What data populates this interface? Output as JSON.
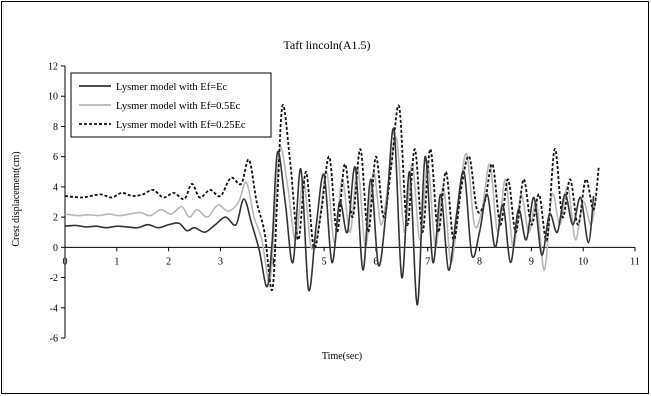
{
  "chart_data": {
    "type": "line",
    "title": "Taft lincoln(A1.5)",
    "xlabel": "Time(sec)",
    "ylabel": "Crest displacement(cm)",
    "xlim": [
      0,
      11
    ],
    "ylim": [
      -6,
      12
    ],
    "xticks": [
      0,
      1,
      2,
      3,
      4,
      5,
      6,
      7,
      8,
      9,
      10,
      11
    ],
    "yticks": [
      -6,
      -4,
      -2,
      0,
      2,
      4,
      6,
      8,
      10,
      12
    ],
    "grid": false,
    "legend_position": "top-left",
    "series": [
      {
        "name": "Lysmer model with Ef=Ec",
        "color": "#333333",
        "dash": "solid",
        "x": [
          0,
          0.2,
          0.4,
          0.6,
          0.8,
          1.0,
          1.2,
          1.4,
          1.6,
          1.8,
          2.0,
          2.2,
          2.35,
          2.5,
          2.7,
          2.9,
          3.1,
          3.3,
          3.45,
          3.6,
          3.75,
          3.9,
          4.0,
          4.1,
          4.25,
          4.4,
          4.55,
          4.7,
          4.85,
          5.0,
          5.15,
          5.3,
          5.45,
          5.6,
          5.75,
          5.9,
          6.05,
          6.2,
          6.35,
          6.5,
          6.65,
          6.8,
          6.95,
          7.1,
          7.25,
          7.4,
          7.55,
          7.7,
          7.85,
          8.0,
          8.15,
          8.3,
          8.45,
          8.6,
          8.75,
          8.9,
          9.05,
          9.2,
          9.35,
          9.5,
          9.65,
          9.8,
          9.95,
          10.1,
          10.2
        ],
        "y": [
          1.4,
          1.45,
          1.35,
          1.4,
          1.3,
          1.4,
          1.35,
          1.3,
          1.5,
          1.3,
          1.5,
          1.6,
          1.1,
          1.3,
          1.0,
          1.5,
          2.0,
          1.5,
          3.2,
          1.6,
          -0.2,
          -2.6,
          0.5,
          6.3,
          3.0,
          -1.0,
          5.2,
          -2.8,
          1.5,
          4.8,
          -1.0,
          3.0,
          1.0,
          5.3,
          -1.5,
          4.5,
          -1.2,
          2.5,
          7.8,
          -2.0,
          5.0,
          -3.8,
          6.0,
          -1.0,
          3.5,
          -1.5,
          2.0,
          5.0,
          -0.5,
          1.0,
          3.5,
          0.0,
          2.8,
          -1.0,
          2.5,
          0.5,
          3.3,
          -0.5,
          2.2,
          1.0,
          3.5,
          1.5,
          3.3,
          0.3,
          3.4
        ],
        "x_offset": 0
      },
      {
        "name": "Lysmer model with Ef=0.5Ec",
        "color": "#b8b8b8",
        "dash": "solid",
        "x": [
          0,
          0.2,
          0.4,
          0.6,
          0.8,
          1.0,
          1.2,
          1.4,
          1.6,
          1.8,
          2.0,
          2.2,
          2.35,
          2.5,
          2.7,
          2.9,
          3.1,
          3.3,
          3.45,
          3.6,
          3.75,
          3.9,
          4.0,
          4.1,
          4.25,
          4.4,
          4.55,
          4.7,
          4.85,
          5.0,
          5.15,
          5.3,
          5.45,
          5.6,
          5.75,
          5.9,
          6.05,
          6.2,
          6.35,
          6.5,
          6.65,
          6.8,
          6.95,
          7.1,
          7.25,
          7.4,
          7.55,
          7.7,
          7.85,
          8.0,
          8.15,
          8.3,
          8.45,
          8.6,
          8.75,
          8.9,
          9.05,
          9.2,
          9.35,
          9.5,
          9.65,
          9.8,
          9.95,
          10.1,
          10.2
        ],
        "y": [
          2.2,
          2.1,
          2.15,
          2.1,
          2.2,
          2.1,
          2.2,
          2.3,
          2.1,
          2.5,
          2.2,
          2.7,
          2.0,
          2.5,
          2.0,
          2.8,
          2.4,
          3.0,
          4.3,
          2.0,
          0.5,
          -2.3,
          2.0,
          6.6,
          4.0,
          0.5,
          4.5,
          0.0,
          1.5,
          5.0,
          0.3,
          4.5,
          1.0,
          5.2,
          0.0,
          5.0,
          1.5,
          4.5,
          7.2,
          1.0,
          5.5,
          0.5,
          5.5,
          0.0,
          4.0,
          -1.0,
          3.0,
          6.2,
          1.5,
          2.5,
          5.5,
          1.0,
          4.5,
          0.0,
          3.5,
          1.0,
          3.0,
          -1.5,
          3.5,
          1.5,
          4.0,
          0.5,
          3.0,
          1.5,
          3.4
        ],
        "x_offset": 0.05
      },
      {
        "name": "Lysmer model with Ef=0.25Ec",
        "color": "#111111",
        "dash": "dotted",
        "x": [
          0,
          0.2,
          0.4,
          0.6,
          0.8,
          1.0,
          1.2,
          1.4,
          1.6,
          1.8,
          2.0,
          2.2,
          2.35,
          2.5,
          2.7,
          2.9,
          3.1,
          3.3,
          3.45,
          3.6,
          3.75,
          3.9,
          4.0,
          4.1,
          4.25,
          4.4,
          4.55,
          4.7,
          4.85,
          5.0,
          5.15,
          5.3,
          5.45,
          5.6,
          5.75,
          5.9,
          6.05,
          6.2,
          6.35,
          6.5,
          6.65,
          6.8,
          6.95,
          7.1,
          7.25,
          7.4,
          7.55,
          7.7,
          7.85,
          8.0,
          8.15,
          8.3,
          8.45,
          8.6,
          8.75,
          8.9,
          9.05,
          9.2,
          9.35,
          9.5,
          9.65,
          9.8,
          9.95,
          10.1,
          10.2
        ],
        "y": [
          3.4,
          3.3,
          3.4,
          3.5,
          3.3,
          3.6,
          3.4,
          3.5,
          3.8,
          3.3,
          3.6,
          3.2,
          4.2,
          3.3,
          3.8,
          3.4,
          4.6,
          4.2,
          5.8,
          3.0,
          1.0,
          -2.8,
          3.5,
          9.4,
          5.5,
          0.5,
          5.0,
          0.0,
          2.5,
          6.0,
          1.0,
          5.5,
          2.0,
          6.5,
          1.0,
          6.0,
          2.0,
          5.5,
          9.3,
          1.5,
          6.5,
          1.0,
          6.5,
          1.0,
          5.0,
          0.5,
          4.0,
          6.0,
          2.5,
          3.0,
          5.5,
          1.5,
          4.5,
          1.0,
          4.5,
          1.5,
          3.5,
          0.5,
          6.5,
          2.0,
          4.5,
          1.5,
          4.5,
          2.5,
          5.3
        ],
        "x_offset": 0.1
      }
    ]
  }
}
